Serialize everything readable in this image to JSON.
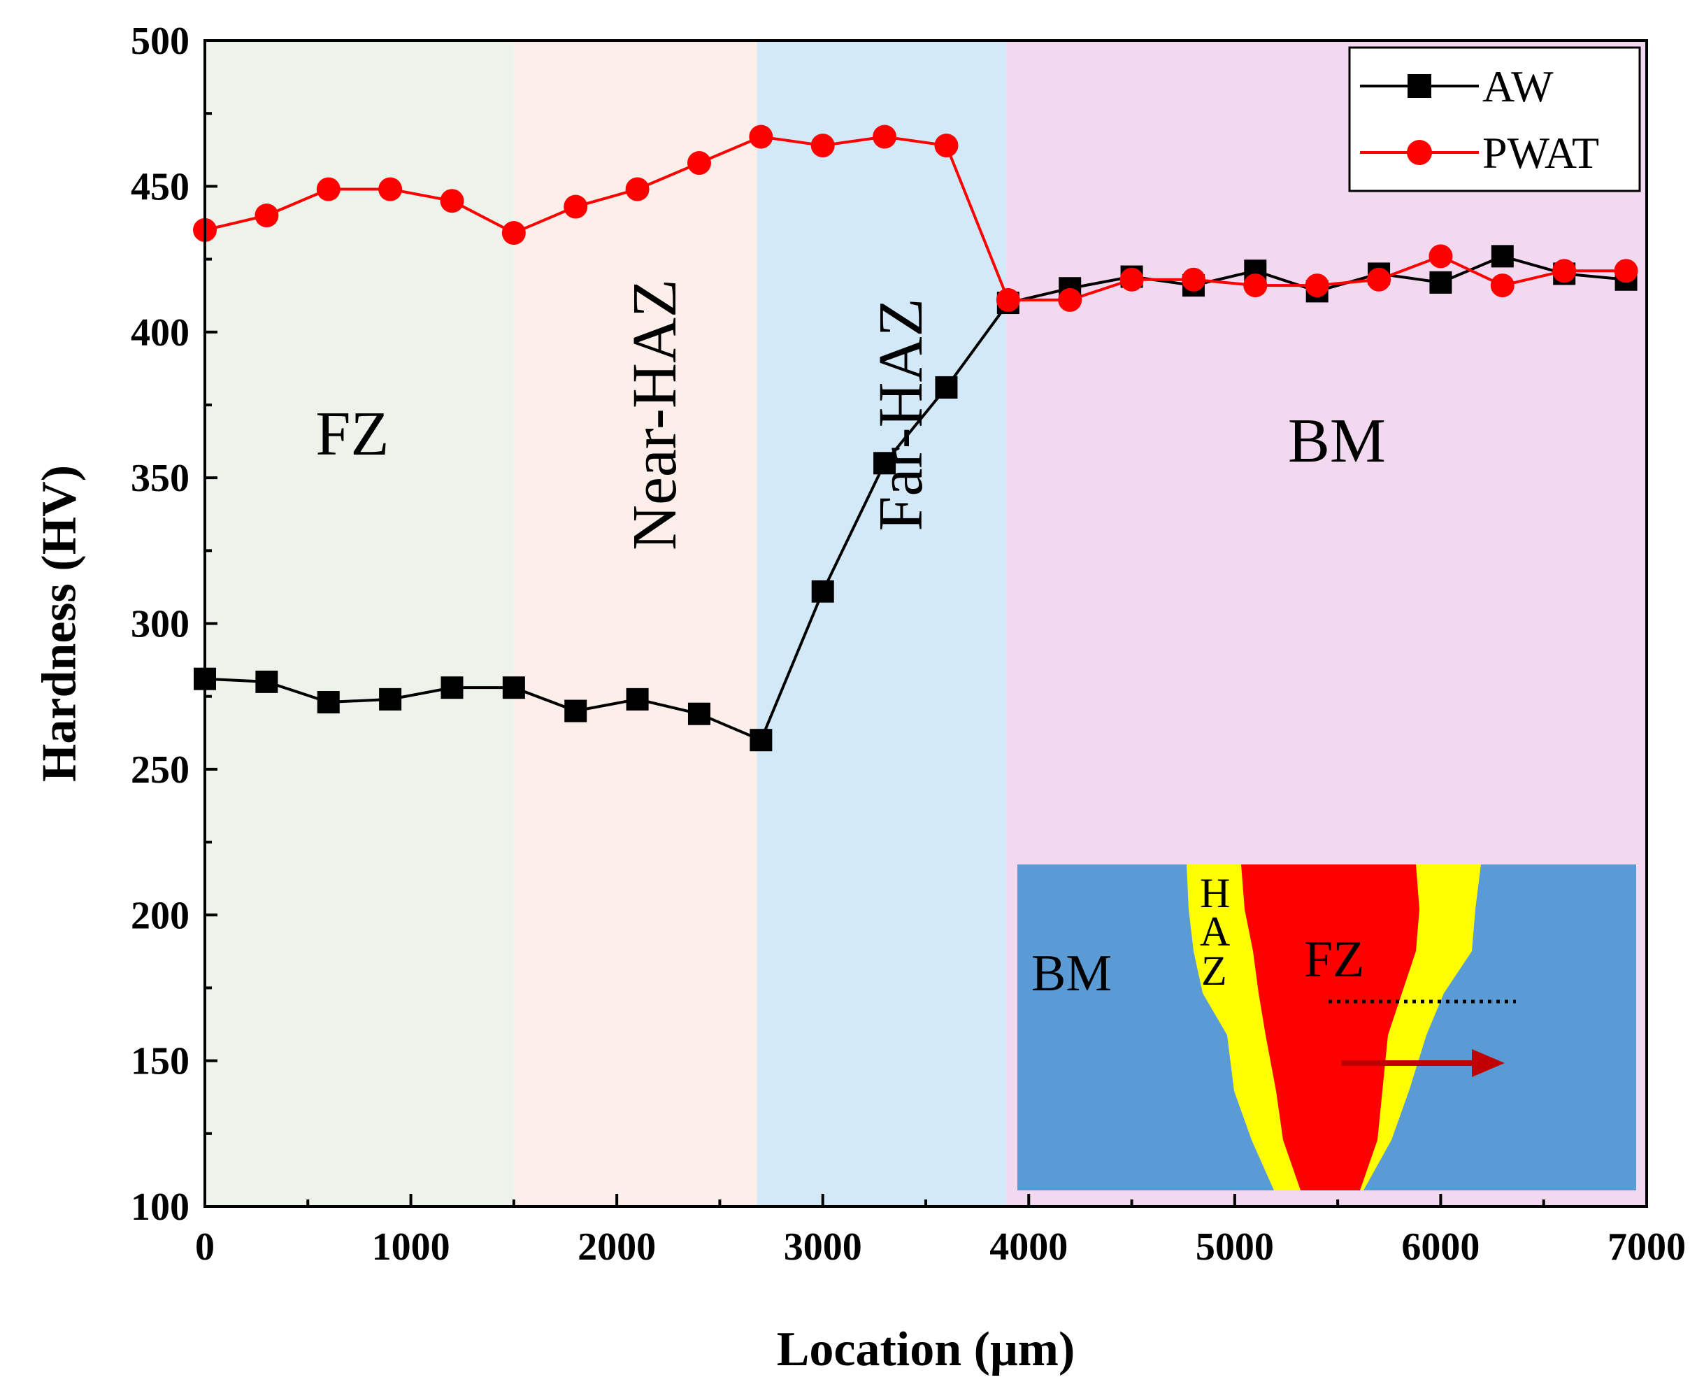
{
  "chart_data": {
    "type": "line",
    "title": "",
    "xlabel": "Location (μm)",
    "ylabel": "Hardness (HV)",
    "xlim": [
      0,
      7000
    ],
    "ylim": [
      100,
      500
    ],
    "xticks": [
      0,
      1000,
      2000,
      3000,
      4000,
      5000,
      6000,
      7000
    ],
    "yticks": [
      100,
      150,
      200,
      250,
      300,
      350,
      400,
      450,
      500
    ],
    "legend_position": "top-right",
    "regions": [
      {
        "label": "FZ",
        "x_start": 0,
        "x_end": 1500,
        "color": "#edf2ea",
        "orientation": "horizontal"
      },
      {
        "label": "Near-HAZ",
        "x_start": 1500,
        "x_end": 2680,
        "color": "#fcefe9",
        "orientation": "vertical"
      },
      {
        "label": "Far-HAZ",
        "x_start": 2680,
        "x_end": 3890,
        "color": "#d3e9f7",
        "orientation": "vertical"
      },
      {
        "label": "BM",
        "x_start": 3890,
        "x_end": 7000,
        "color": "#f2d9f0",
        "orientation": "horizontal"
      }
    ],
    "series": [
      {
        "name": "AW",
        "color": "#000000",
        "marker": "square",
        "x": [
          0,
          300,
          600,
          900,
          1200,
          1500,
          1800,
          2100,
          2400,
          2700,
          3000,
          3300,
          3600,
          3900,
          4200,
          4500,
          4800,
          5100,
          5400,
          5700,
          6000,
          6300,
          6600,
          6900
        ],
        "values": [
          281,
          280,
          273,
          274,
          278,
          278,
          270,
          274,
          269,
          260,
          311,
          355,
          381,
          410,
          415,
          419,
          416,
          421,
          414,
          420,
          417,
          426,
          420,
          418
        ]
      },
      {
        "name": "PWAT",
        "color": "#ff0000",
        "marker": "circle",
        "x": [
          0,
          300,
          600,
          900,
          1200,
          1500,
          1800,
          2100,
          2400,
          2700,
          3000,
          3300,
          3600,
          3900,
          4200,
          4500,
          4800,
          5100,
          5400,
          5700,
          6000,
          6300,
          6600,
          6900
        ],
        "values": [
          435,
          440,
          449,
          449,
          445,
          434,
          443,
          449,
          458,
          467,
          464,
          467,
          464,
          411,
          411,
          418,
          418,
          416,
          416,
          418,
          426,
          416,
          421,
          421
        ]
      }
    ],
    "inset": {
      "labels": {
        "bm": "BM",
        "fz": "FZ",
        "haz": [
          "H",
          "A",
          "Z"
        ]
      },
      "colors": {
        "bm": "#5b9bd5",
        "haz": "#ffff00",
        "fz": "#ff0000",
        "arrow": "#c00000"
      }
    }
  }
}
